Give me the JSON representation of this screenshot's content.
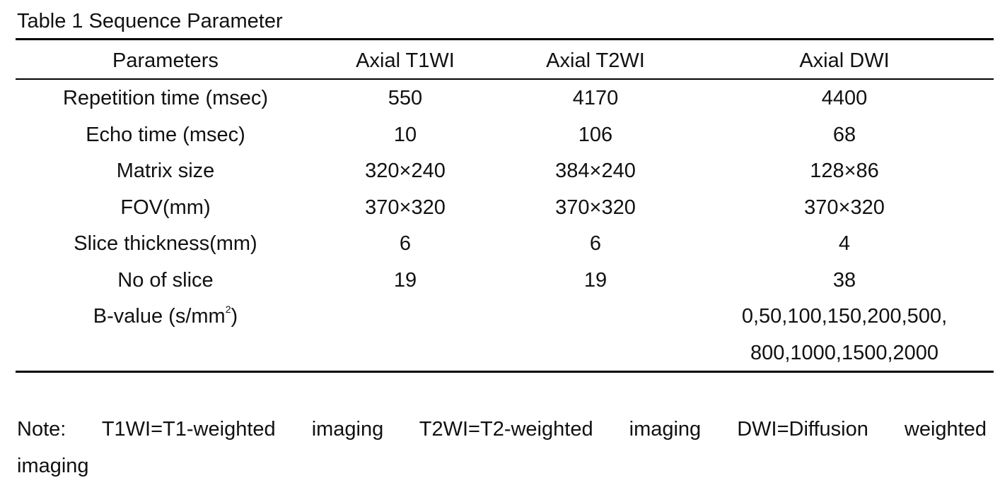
{
  "title": "Table 1 Sequence Parameter",
  "table": {
    "header": [
      "Parameters",
      "Axial T1WI",
      "Axial T2WI",
      "Axial DWI"
    ],
    "rows": [
      [
        "Repetition time (msec)",
        550,
        4170,
        4400
      ],
      [
        "Echo time (msec)",
        10,
        106,
        68
      ],
      [
        "Matrix size",
        "320×240",
        "384×240",
        "128×86"
      ],
      [
        "FOV(mm)",
        "370×320",
        "370×320",
        "370×320"
      ],
      [
        "Slice thickness(mm)",
        6,
        6,
        4
      ],
      [
        "No of slice",
        19,
        19,
        38
      ]
    ],
    "b_value_row": {
      "parameter": "B-value (s/mm",
      "superscript": "2",
      "parameter_end": ")",
      "dwi_lines": [
        "0,50,100,150,200,500,",
        "800,1000,1500,2000"
      ]
    }
  },
  "note_lines": [
    "Note: T1WI=T1-weighted imaging T2WI=T2-weighted imaging DWI=Diffusion weighted",
    "imaging"
  ]
}
